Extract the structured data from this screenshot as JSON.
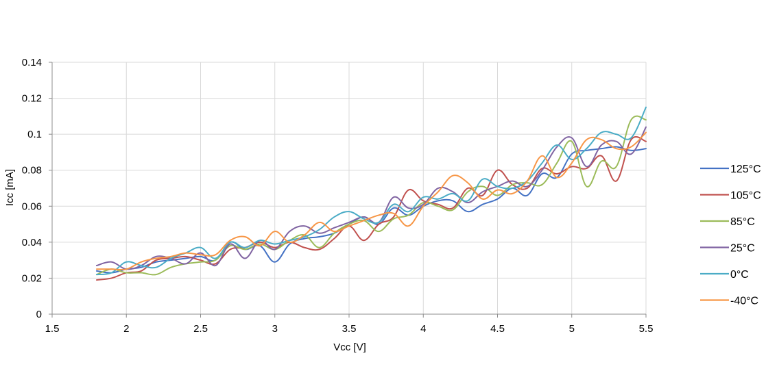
{
  "chart_data": {
    "type": "line",
    "xlabel": "Vcc [V]",
    "ylabel": "Icc [mA]",
    "xlim": [
      1.5,
      5.5
    ],
    "ylim": [
      0,
      0.14
    ],
    "x_ticks": [
      "1.5",
      "2",
      "2.5",
      "3",
      "3.5",
      "4",
      "4.5",
      "5",
      "5.5"
    ],
    "y_ticks": [
      "0",
      "0.02",
      "0.04",
      "0.06",
      "0.08",
      "0.1",
      "0.12",
      "0.14"
    ],
    "grid": true,
    "legend_position": "right",
    "x": [
      1.8,
      1.9,
      2.0,
      2.1,
      2.2,
      2.3,
      2.4,
      2.5,
      2.6,
      2.7,
      2.8,
      2.9,
      3.0,
      3.1,
      3.2,
      3.3,
      3.4,
      3.5,
      3.6,
      3.7,
      3.8,
      3.9,
      4.0,
      4.1,
      4.2,
      4.3,
      4.4,
      4.5,
      4.6,
      4.7,
      4.8,
      4.9,
      5.0,
      5.1,
      5.2,
      5.3,
      5.4,
      5.5
    ],
    "series": [
      {
        "name": "125°C",
        "color": "#4472C4",
        "values": [
          0.024,
          0.023,
          0.025,
          0.026,
          0.029,
          0.03,
          0.031,
          0.032,
          0.03,
          0.04,
          0.036,
          0.038,
          0.029,
          0.039,
          0.042,
          0.043,
          0.045,
          0.05,
          0.054,
          0.05,
          0.059,
          0.055,
          0.06,
          0.063,
          0.063,
          0.057,
          0.061,
          0.064,
          0.07,
          0.066,
          0.078,
          0.076,
          0.089,
          0.091,
          0.092,
          0.093,
          0.091,
          0.092
        ]
      },
      {
        "name": "105°C",
        "color": "#C0504D",
        "values": [
          0.019,
          0.02,
          0.023,
          0.024,
          0.03,
          0.031,
          0.032,
          0.03,
          0.028,
          0.036,
          0.037,
          0.04,
          0.037,
          0.04,
          0.037,
          0.036,
          0.042,
          0.049,
          0.041,
          0.05,
          0.054,
          0.069,
          0.063,
          0.061,
          0.059,
          0.07,
          0.066,
          0.08,
          0.072,
          0.07,
          0.081,
          0.078,
          0.082,
          0.081,
          0.088,
          0.074,
          0.097,
          0.096
        ]
      },
      {
        "name": "85°C",
        "color": "#9BBB59",
        "values": [
          0.022,
          0.025,
          0.023,
          0.023,
          0.022,
          0.026,
          0.028,
          0.029,
          0.03,
          0.038,
          0.036,
          0.039,
          0.036,
          0.041,
          0.044,
          0.037,
          0.045,
          0.05,
          0.052,
          0.046,
          0.053,
          0.055,
          0.062,
          0.06,
          0.058,
          0.068,
          0.071,
          0.066,
          0.072,
          0.073,
          0.072,
          0.084,
          0.096,
          0.071,
          0.085,
          0.082,
          0.108,
          0.108
        ]
      },
      {
        "name": "25°C",
        "color": "#8064A2",
        "values": [
          0.027,
          0.029,
          0.025,
          0.027,
          0.032,
          0.031,
          0.028,
          0.034,
          0.027,
          0.039,
          0.031,
          0.041,
          0.036,
          0.046,
          0.049,
          0.045,
          0.048,
          0.051,
          0.054,
          0.051,
          0.065,
          0.059,
          0.061,
          0.07,
          0.068,
          0.062,
          0.068,
          0.071,
          0.074,
          0.071,
          0.08,
          0.093,
          0.098,
          0.082,
          0.094,
          0.096,
          0.089,
          0.104
        ]
      },
      {
        "name": "0°C",
        "color": "#4BACC6",
        "values": [
          0.022,
          0.023,
          0.029,
          0.027,
          0.026,
          0.031,
          0.034,
          0.037,
          0.031,
          0.04,
          0.037,
          0.041,
          0.039,
          0.041,
          0.043,
          0.047,
          0.054,
          0.057,
          0.053,
          0.051,
          0.061,
          0.057,
          0.065,
          0.064,
          0.067,
          0.063,
          0.075,
          0.071,
          0.07,
          0.074,
          0.084,
          0.094,
          0.086,
          0.092,
          0.101,
          0.1,
          0.098,
          0.115
        ]
      },
      {
        "name": "-40°C",
        "color": "#F79646",
        "values": [
          0.025,
          0.025,
          0.025,
          0.029,
          0.031,
          0.032,
          0.034,
          0.033,
          0.033,
          0.041,
          0.043,
          0.038,
          0.046,
          0.04,
          0.044,
          0.051,
          0.046,
          0.049,
          0.052,
          0.055,
          0.056,
          0.049,
          0.06,
          0.068,
          0.077,
          0.073,
          0.064,
          0.069,
          0.067,
          0.074,
          0.088,
          0.076,
          0.084,
          0.097,
          0.097,
          0.092,
          0.093,
          0.101
        ]
      }
    ]
  }
}
